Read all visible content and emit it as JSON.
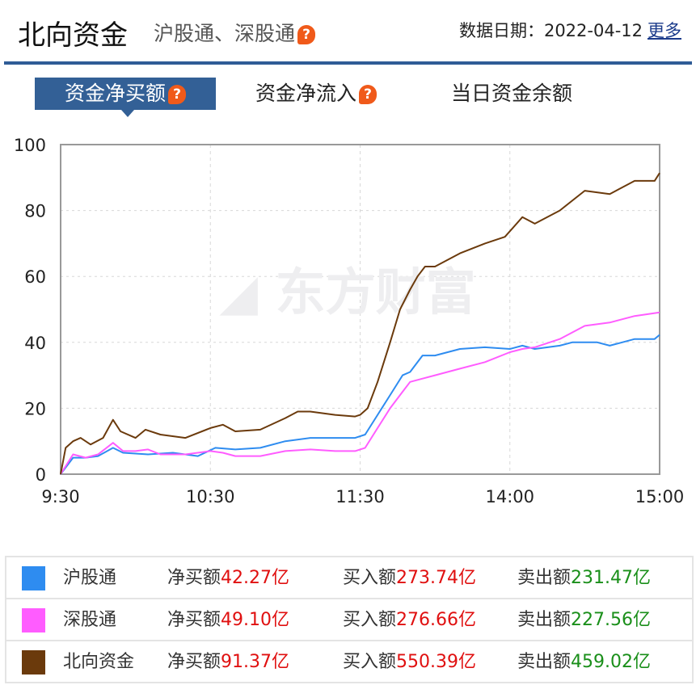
{
  "header": {
    "title": "北向资金",
    "subtitle": "沪股通、深股通",
    "date_label": "数据日期：",
    "date": "2022-04-12",
    "more_label": "更多",
    "help_icon": "question-bubble-icon"
  },
  "tabs": [
    {
      "label": "资金净买额",
      "active": true,
      "help": true
    },
    {
      "label": "资金净流入",
      "active": false,
      "help": true
    },
    {
      "label": "当日资金余额",
      "active": false,
      "help": false
    }
  ],
  "watermark": "东方财富",
  "chart_data": {
    "type": "line",
    "x_unit": "trading minutes",
    "xtick_labels": [
      "9:30",
      "10:30",
      "11:30",
      "14:00",
      "15:00"
    ],
    "ytick_labels": [
      "0",
      "20",
      "40",
      "60",
      "80",
      "100"
    ],
    "ylim": [
      0,
      100
    ],
    "grid": true,
    "series": [
      {
        "name": "沪股通",
        "color": "#2e8cf0",
        "points": [
          [
            0,
            0
          ],
          [
            5,
            5
          ],
          [
            10,
            5
          ],
          [
            15,
            5.5
          ],
          [
            21,
            8
          ],
          [
            25,
            6.5
          ],
          [
            35,
            6
          ],
          [
            45,
            6.5
          ],
          [
            55,
            5.5
          ],
          [
            62,
            8
          ],
          [
            70,
            7.5
          ],
          [
            80,
            8
          ],
          [
            90,
            10
          ],
          [
            100,
            11
          ],
          [
            110,
            11
          ],
          [
            118,
            11
          ],
          [
            122,
            12
          ],
          [
            127,
            18
          ],
          [
            132,
            24
          ],
          [
            137,
            30
          ],
          [
            140,
            31
          ],
          [
            145,
            36
          ],
          [
            150,
            36
          ],
          [
            160,
            38
          ],
          [
            170,
            38.5
          ],
          [
            180,
            38
          ],
          [
            185,
            39
          ],
          [
            190,
            38
          ],
          [
            200,
            39
          ],
          [
            205,
            40
          ],
          [
            215,
            40
          ],
          [
            220,
            39
          ],
          [
            230,
            41
          ],
          [
            238,
            41
          ],
          [
            240,
            42.27
          ]
        ]
      },
      {
        "name": "深股通",
        "color": "#ff5cff",
        "points": [
          [
            0,
            0
          ],
          [
            5,
            6
          ],
          [
            10,
            5
          ],
          [
            15,
            6
          ],
          [
            21,
            9.5
          ],
          [
            25,
            7
          ],
          [
            30,
            7
          ],
          [
            35,
            7.5
          ],
          [
            40,
            6
          ],
          [
            50,
            6
          ],
          [
            60,
            7
          ],
          [
            65,
            6.5
          ],
          [
            70,
            5.5
          ],
          [
            80,
            5.5
          ],
          [
            90,
            7
          ],
          [
            100,
            7.5
          ],
          [
            110,
            7
          ],
          [
            118,
            7
          ],
          [
            122,
            8
          ],
          [
            127,
            14
          ],
          [
            132,
            20
          ],
          [
            137,
            25
          ],
          [
            140,
            28
          ],
          [
            145,
            29
          ],
          [
            150,
            30
          ],
          [
            160,
            32
          ],
          [
            170,
            34
          ],
          [
            180,
            37
          ],
          [
            185,
            38
          ],
          [
            190,
            38.5
          ],
          [
            200,
            41
          ],
          [
            210,
            45
          ],
          [
            220,
            46
          ],
          [
            230,
            48
          ],
          [
            240,
            49.1
          ]
        ]
      },
      {
        "name": "北向资金",
        "color": "#6b3a0c",
        "points": [
          [
            0,
            0
          ],
          [
            2,
            8
          ],
          [
            5,
            10
          ],
          [
            8,
            11
          ],
          [
            12,
            9
          ],
          [
            17,
            11
          ],
          [
            21,
            16.5
          ],
          [
            24,
            13
          ],
          [
            30,
            11
          ],
          [
            34,
            13.5
          ],
          [
            40,
            12
          ],
          [
            50,
            11
          ],
          [
            60,
            14
          ],
          [
            65,
            15
          ],
          [
            70,
            13
          ],
          [
            80,
            13.5
          ],
          [
            90,
            17
          ],
          [
            95,
            19
          ],
          [
            100,
            19
          ],
          [
            110,
            18
          ],
          [
            118,
            17.5
          ],
          [
            120,
            18
          ],
          [
            123,
            20
          ],
          [
            127,
            28
          ],
          [
            132,
            40
          ],
          [
            136,
            50
          ],
          [
            140,
            56
          ],
          [
            143,
            60
          ],
          [
            146,
            63
          ],
          [
            150,
            63
          ],
          [
            160,
            67
          ],
          [
            170,
            70
          ],
          [
            178,
            72
          ],
          [
            185,
            78
          ],
          [
            190,
            76
          ],
          [
            200,
            80
          ],
          [
            210,
            86
          ],
          [
            220,
            85
          ],
          [
            230,
            89
          ],
          [
            238,
            89
          ],
          [
            240,
            91.37
          ]
        ]
      }
    ]
  },
  "legend": [
    {
      "name": "沪股通",
      "color": "#2e8cf0",
      "net_label": "净买额",
      "net": "42.27亿",
      "buy_label": "买入额",
      "buy": "273.74亿",
      "sell_label": "卖出额",
      "sell": "231.47亿"
    },
    {
      "name": "深股通",
      "color": "#ff5cff",
      "net_label": "净买额",
      "net": "49.10亿",
      "buy_label": "买入额",
      "buy": "276.66亿",
      "sell_label": "卖出额",
      "sell": "227.56亿"
    },
    {
      "name": "北向资金",
      "color": "#6b3a0c",
      "net_label": "净买额",
      "net": "91.37亿",
      "buy_label": "买入额",
      "buy": "550.39亿",
      "sell_label": "卖出额",
      "sell": "459.02亿"
    }
  ]
}
